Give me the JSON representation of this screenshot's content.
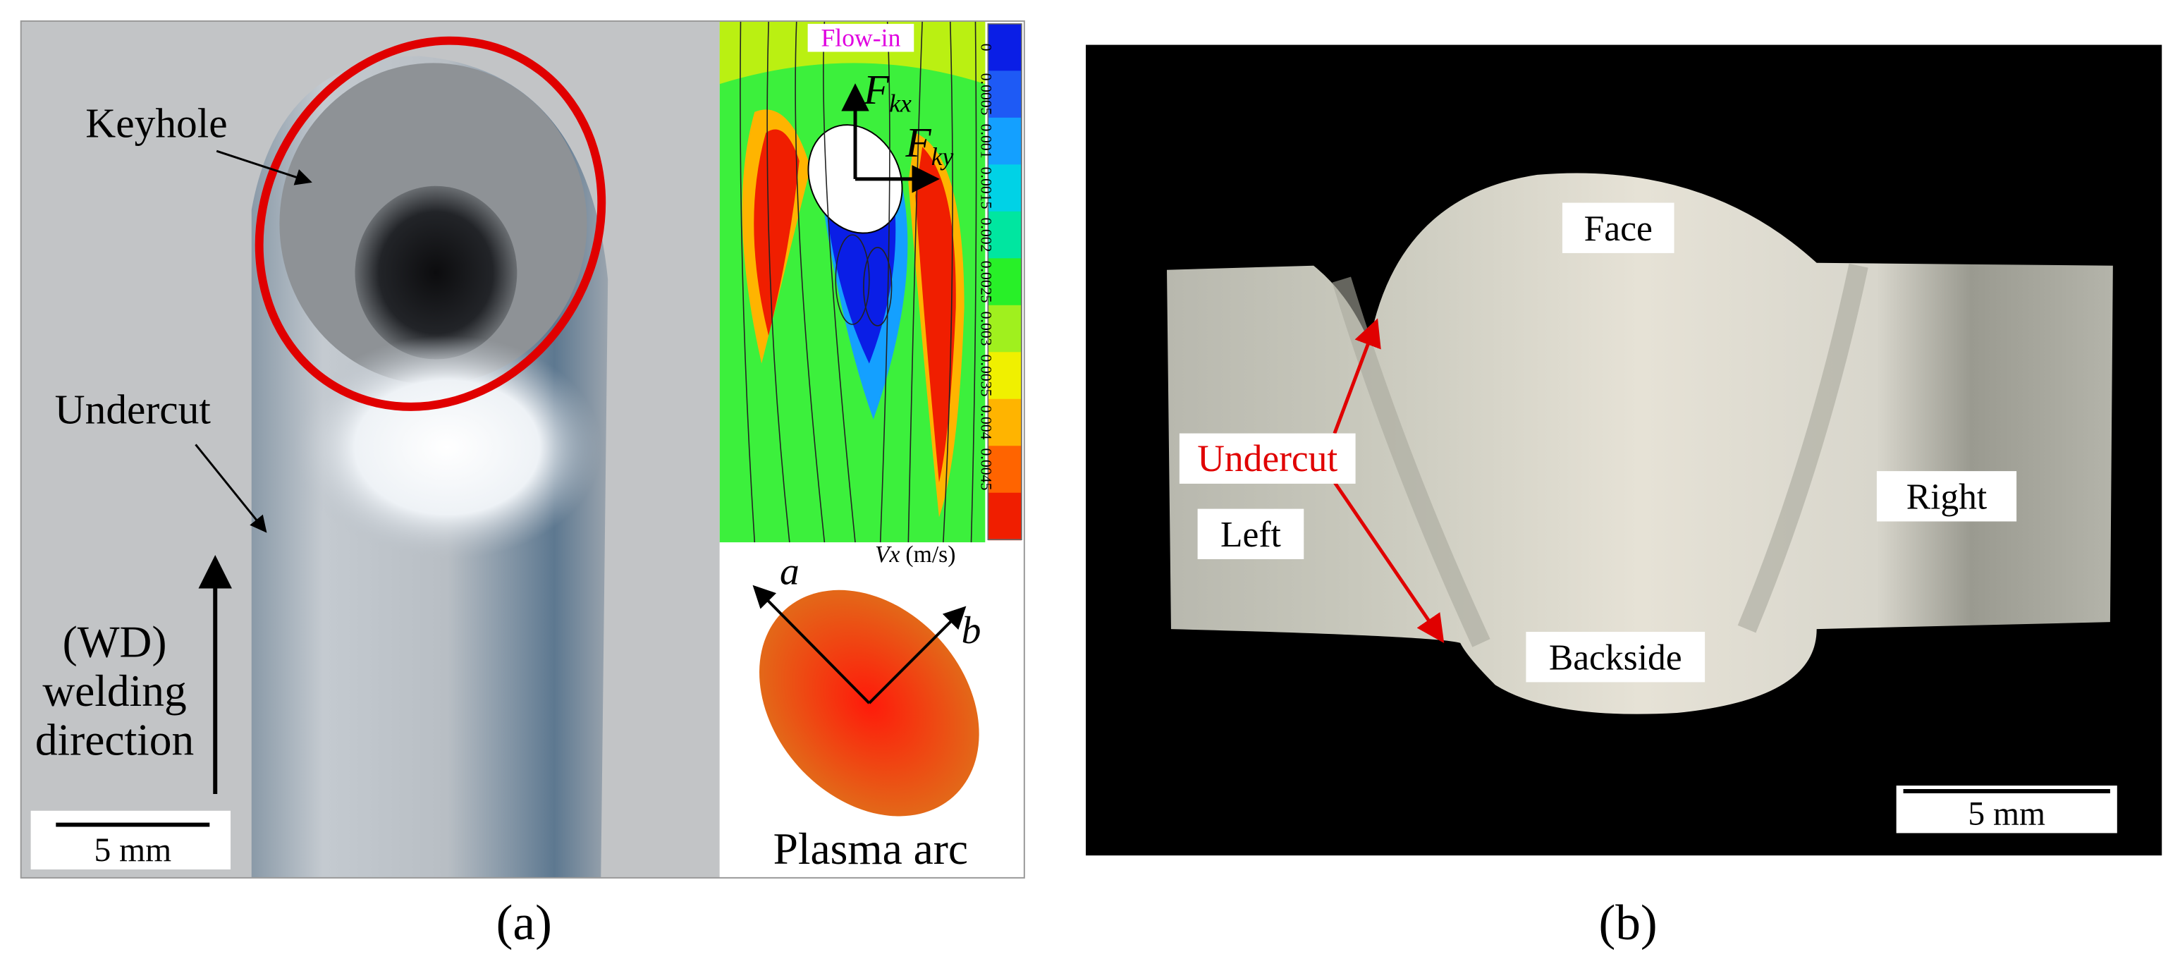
{
  "panel_a": {
    "photo": {
      "keyhole": "Keyhole",
      "undercut": "Undercut",
      "direction": [
        "(WD)",
        "welding",
        "direction"
      ],
      "scale_bar": "5 mm"
    },
    "simulation": {
      "flow_in": "Flow-in",
      "force_x": {
        "symbol": "F",
        "subscript": "kx"
      },
      "force_y": {
        "symbol": "F",
        "subscript": "ky"
      },
      "colorbar": {
        "ticks": [
          "0",
          "0.0005",
          "0.001",
          "0.0015",
          "0.002",
          "0.0025",
          "0.003",
          "0.0035",
          "0.004",
          "0.0045"
        ],
        "colors": [
          "#0a1ee6",
          "#1e5af5",
          "#14a0ff",
          "#00d2e6",
          "#00e6a0",
          "#28f028",
          "#a0f01e",
          "#f0f000",
          "#ffb400",
          "#ff6400",
          "#f01e00"
        ],
        "label": {
          "symbol": "Vx",
          "unit": "(m/s)"
        }
      }
    },
    "plasma_arc": {
      "axis_a": "a",
      "axis_b": "b",
      "caption": "Plasma arc"
    },
    "label": "(a)"
  },
  "panel_b": {
    "face": "Face",
    "left": "Left",
    "right": "Right",
    "undercut": "Undercut",
    "backside": "Backside",
    "scale_bar": "5 mm",
    "label": "(b)"
  }
}
